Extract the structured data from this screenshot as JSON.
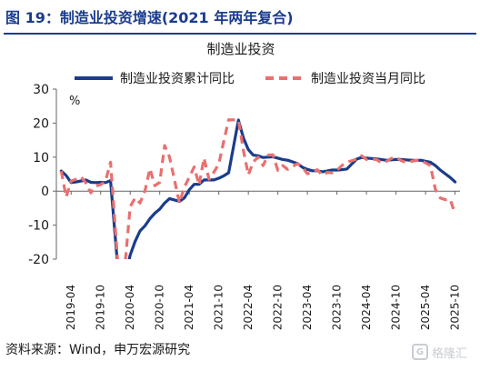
{
  "figure_title": "图 19：制造业投资增速(2021 年两年复合)",
  "source_note": "资料来源：Wind，申万宏源研究",
  "watermark": "格隆汇",
  "colors": {
    "title": "#1a3c8c",
    "cumulative": "#1a3c8c",
    "monthly": "#e8706f",
    "axis": "#666666",
    "text": "#1a1a1a"
  },
  "chart_data": {
    "type": "line",
    "title": "制造业投资",
    "ylabel": "%",
    "ylim": [
      -20,
      30
    ],
    "yticks": [
      -20,
      -10,
      0,
      10,
      20,
      30
    ],
    "xlim": [
      "2019-01",
      "2025-11"
    ],
    "xticks": [
      "2019-04",
      "2019-10",
      "2020-04",
      "2020-10",
      "2021-04",
      "2021-10",
      "2022-04",
      "2022-10",
      "2023-04",
      "2023-10",
      "2024-04",
      "2024-10",
      "2025-04",
      "2025-10"
    ],
    "legend_position": "top",
    "grid": false,
    "series": [
      {
        "name": "制造业投资累计同比",
        "style": "solid",
        "points": [
          [
            "2019-02",
            5.9
          ],
          [
            "2019-03",
            4.6
          ],
          [
            "2019-04",
            2.5
          ],
          [
            "2019-05",
            2.7
          ],
          [
            "2019-06",
            3.0
          ],
          [
            "2019-07",
            3.3
          ],
          [
            "2019-08",
            2.6
          ],
          [
            "2019-09",
            2.5
          ],
          [
            "2019-10",
            2.6
          ],
          [
            "2019-11",
            2.5
          ],
          [
            "2019-12",
            3.1
          ],
          [
            "2020-02",
            -31.5
          ],
          [
            "2020-03",
            -25.2
          ],
          [
            "2020-04",
            -18.8
          ],
          [
            "2020-05",
            -14.8
          ],
          [
            "2020-06",
            -11.7
          ],
          [
            "2020-07",
            -10.2
          ],
          [
            "2020-08",
            -8.1
          ],
          [
            "2020-09",
            -6.5
          ],
          [
            "2020-10",
            -5.3
          ],
          [
            "2020-11",
            -3.5
          ],
          [
            "2020-12",
            -2.2
          ],
          [
            "2021-02",
            -3.0
          ],
          [
            "2021-03",
            -2.0
          ],
          [
            "2021-04",
            0.4
          ],
          [
            "2021-05",
            2.0
          ],
          [
            "2021-06",
            2.0
          ],
          [
            "2021-07",
            3.3
          ],
          [
            "2021-08",
            3.3
          ],
          [
            "2021-09",
            3.3
          ],
          [
            "2021-10",
            3.8
          ],
          [
            "2021-11",
            4.5
          ],
          [
            "2021-12",
            5.4
          ],
          [
            "2022-02",
            20.9
          ],
          [
            "2022-03",
            15.6
          ],
          [
            "2022-04",
            12.2
          ],
          [
            "2022-05",
            10.6
          ],
          [
            "2022-06",
            10.4
          ],
          [
            "2022-07",
            9.9
          ],
          [
            "2022-08",
            10.0
          ],
          [
            "2022-09",
            10.1
          ],
          [
            "2022-10",
            9.7
          ],
          [
            "2022-11",
            9.3
          ],
          [
            "2022-12",
            9.1
          ],
          [
            "2023-02",
            8.1
          ],
          [
            "2023-03",
            7.0
          ],
          [
            "2023-04",
            6.4
          ],
          [
            "2023-05",
            6.0
          ],
          [
            "2023-06",
            6.0
          ],
          [
            "2023-07",
            5.7
          ],
          [
            "2023-08",
            5.9
          ],
          [
            "2023-09",
            6.2
          ],
          [
            "2023-10",
            6.2
          ],
          [
            "2023-11",
            6.3
          ],
          [
            "2023-12",
            6.5
          ],
          [
            "2024-02",
            9.4
          ],
          [
            "2024-03",
            9.9
          ],
          [
            "2024-04",
            9.7
          ],
          [
            "2024-05",
            9.6
          ],
          [
            "2024-06",
            9.5
          ],
          [
            "2024-07",
            9.3
          ],
          [
            "2024-08",
            9.1
          ],
          [
            "2024-09",
            9.2
          ],
          [
            "2024-10",
            9.3
          ],
          [
            "2024-11",
            9.3
          ],
          [
            "2024-12",
            9.2
          ],
          [
            "2025-02",
            9.0
          ],
          [
            "2025-03",
            9.1
          ],
          [
            "2025-04",
            8.8
          ],
          [
            "2025-05",
            8.5
          ],
          [
            "2025-06",
            7.5
          ],
          [
            "2025-07",
            6.2
          ],
          [
            "2025-08",
            5.1
          ],
          [
            "2025-09",
            4.0
          ],
          [
            "2025-10",
            2.7
          ]
        ]
      },
      {
        "name": "制造业投资当月同比",
        "style": "dashed",
        "points": [
          [
            "2019-02",
            5.9
          ],
          [
            "2019-03",
            -1.7
          ],
          [
            "2019-04",
            3.0
          ],
          [
            "2019-05",
            3.5
          ],
          [
            "2019-06",
            4.2
          ],
          [
            "2019-07",
            2.4
          ],
          [
            "2019-08",
            -0.5
          ],
          [
            "2019-09",
            1.5
          ],
          [
            "2019-10",
            1.9
          ],
          [
            "2019-11",
            3.0
          ],
          [
            "2019-12",
            8.5
          ],
          [
            "2020-02",
            -31.5
          ],
          [
            "2020-03",
            -20.7
          ],
          [
            "2020-04",
            -4.6
          ],
          [
            "2020-05",
            -2.0
          ],
          [
            "2020-06",
            -3.5
          ],
          [
            "2020-07",
            0.1
          ],
          [
            "2020-08",
            6.6
          ],
          [
            "2020-09",
            1.6
          ],
          [
            "2020-10",
            2.6
          ],
          [
            "2020-11",
            13.4
          ],
          [
            "2020-12",
            10.0
          ],
          [
            "2021-02",
            -3.5
          ],
          [
            "2021-03",
            1.2
          ],
          [
            "2021-04",
            4.1
          ],
          [
            "2021-05",
            7.1
          ],
          [
            "2021-06",
            1.8
          ],
          [
            "2021-07",
            9.7
          ],
          [
            "2021-08",
            3.5
          ],
          [
            "2021-09",
            5.6
          ],
          [
            "2021-10",
            8.0
          ],
          [
            "2021-11",
            14.6
          ],
          [
            "2021-12",
            21.0
          ],
          [
            "2022-02",
            20.9
          ],
          [
            "2022-03",
            11.9
          ],
          [
            "2022-04",
            4.8
          ],
          [
            "2022-05",
            8.6
          ],
          [
            "2022-06",
            10.0
          ],
          [
            "2022-07",
            7.5
          ],
          [
            "2022-08",
            10.6
          ],
          [
            "2022-09",
            10.7
          ],
          [
            "2022-10",
            6.1
          ],
          [
            "2022-11",
            7.5
          ],
          [
            "2022-12",
            6.4
          ],
          [
            "2023-02",
            8.1
          ],
          [
            "2023-03",
            7.1
          ],
          [
            "2023-04",
            5.1
          ],
          [
            "2023-05",
            5.5
          ],
          [
            "2023-06",
            6.3
          ],
          [
            "2023-07",
            4.7
          ],
          [
            "2023-08",
            5.5
          ],
          [
            "2023-09",
            5.4
          ],
          [
            "2023-10",
            6.1
          ],
          [
            "2023-11",
            7.5
          ],
          [
            "2023-12",
            8.5
          ],
          [
            "2024-02",
            9.4
          ],
          [
            "2024-03",
            10.4
          ],
          [
            "2024-04",
            9.3
          ],
          [
            "2024-05",
            9.4
          ],
          [
            "2024-06",
            9.3
          ],
          [
            "2024-07",
            8.4
          ],
          [
            "2024-08",
            8.7
          ],
          [
            "2024-09",
            9.6
          ],
          [
            "2024-10",
            10.0
          ],
          [
            "2024-11",
            9.0
          ],
          [
            "2024-12",
            8.5
          ],
          [
            "2025-02",
            9.0
          ],
          [
            "2025-03",
            9.2
          ],
          [
            "2025-04",
            8.3
          ],
          [
            "2025-05",
            7.5
          ],
          [
            "2025-06",
            0.5
          ],
          [
            "2025-07",
            -2.0
          ],
          [
            "2025-08",
            -2.5
          ],
          [
            "2025-09",
            -2.4
          ],
          [
            "2025-10",
            -6.7
          ]
        ]
      }
    ]
  }
}
